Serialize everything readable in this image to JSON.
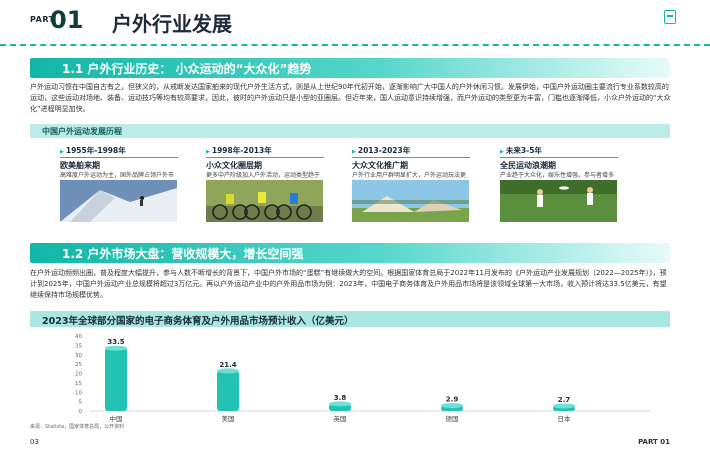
{
  "header": {
    "part_label": "PART",
    "part_number": "01",
    "title": "户外行业发展"
  },
  "section1": {
    "title": "1.1 户外行业历史：  小众运动的“大众化”趋势",
    "paragraph": "户外运动习惯在中国自古有之，但狭义的，从戒断发达国家舶来的现代户外生活方式，则是从上世纪90年代初开始，逐渐影响广大中国人的户外休闲习惯。发展伊始，中国户外运动圈主要流行专业系数较高的运动，这些运动对场地、装备、运动技巧等均有较高要求，因此，彼时的户外运动只是小型的亚圈层。但近年来，国人运动意识持续增强，而户外运动的类型更为丰富，门槛也逐渐降低，小众户外运动的“大众化”进程明显加快。"
  },
  "timeline": {
    "heading": "中国户外运动发展历程",
    "items": [
      {
        "years": "1955年-1998年",
        "name": "欧美舶来期",
        "desc": "高难度户外运动为主，国外品牌占领户外市场"
      },
      {
        "years": "1998年-2013年",
        "name": "小众文化圈层期",
        "desc": "更多中产阶级加入户外活动，运动类型趋于丰富"
      },
      {
        "years": "2013-2023年",
        "name": "大众文化推广期",
        "desc": "户外行业用户群明显扩大，户外运动玩法更多样"
      },
      {
        "years": "未来3-5年",
        "name": "全民运动浪潮期",
        "desc": "产业趋于大众化，娱乐性增强，参与者增多"
      }
    ]
  },
  "section2": {
    "title": "1.2 户外市场大盘：营收规模大，增长空间强",
    "paragraph": "在户外运动频频出圈，普及程度大幅提升，参与人数不断增长的背景下，中国户外市场的“蛋糕”有继续做大的空间。根据国家体育总局于2022年11月发布的《户外运动产业发展规划（2022—2025年）》，预计到2025年，中国户外运动产业总规模将超过3万亿元。再以户外运动产业中的户外用品市场为例：2023年，中国电子商务体育及户外用品市场将是该领域全球第一大市场，收入预计将达33.5亿美元，有望继续保持市场规模优势。"
  },
  "chart_data": {
    "type": "bar",
    "title": "2023年全球部分国家的电子商务体育及户外用品市场预计收入（亿美元）",
    "categories": [
      "中国",
      "美国",
      "英国",
      "德国",
      "日本"
    ],
    "values": [
      33.5,
      21.4,
      3.8,
      2.9,
      2.7
    ],
    "value_labels": [
      "33.5",
      "21.4",
      "3.8",
      "2.9",
      "2.7"
    ],
    "yticks": [
      "40",
      "35",
      "30",
      "25",
      "20",
      "15",
      "10",
      "5",
      "0"
    ],
    "ylim": [
      0,
      40
    ],
    "bar_color": "#23c2b2",
    "source": "来源：Statista，国家体育总局，公开资料"
  },
  "footer": {
    "page": "03",
    "part": "PART 01"
  },
  "colors": {
    "accent": "#16b7a7",
    "dark": "#1c2a3a",
    "light_band": "#bcece7"
  }
}
